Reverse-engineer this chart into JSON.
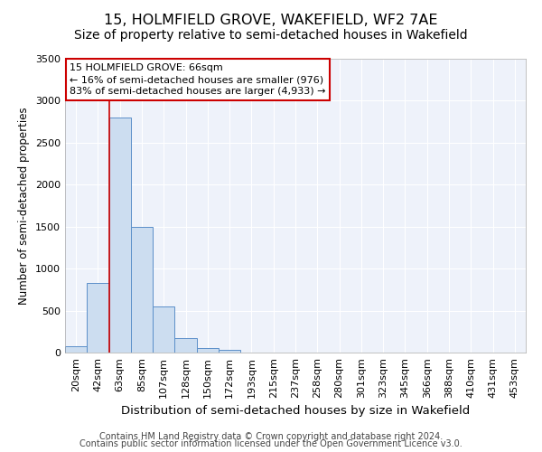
{
  "title": "15, HOLMFIELD GROVE, WAKEFIELD, WF2 7AE",
  "subtitle": "Size of property relative to semi-detached houses in Wakefield",
  "xlabel": "Distribution of semi-detached houses by size in Wakefield",
  "ylabel": "Number of semi-detached properties",
  "categories": [
    "20sqm",
    "42sqm",
    "63sqm",
    "85sqm",
    "107sqm",
    "128sqm",
    "150sqm",
    "172sqm",
    "193sqm",
    "215sqm",
    "237sqm",
    "258sqm",
    "280sqm",
    "301sqm",
    "323sqm",
    "345sqm",
    "366sqm",
    "388sqm",
    "410sqm",
    "431sqm",
    "453sqm"
  ],
  "values": [
    75,
    825,
    2800,
    1500,
    550,
    175,
    55,
    35,
    0,
    0,
    0,
    0,
    0,
    0,
    0,
    0,
    0,
    0,
    0,
    0,
    0
  ],
  "bar_color": "#ccddf0",
  "bar_edge_color": "#5b8fc9",
  "vline_color": "#cc0000",
  "vline_pos": 1.5,
  "ylim": [
    0,
    3500
  ],
  "yticks": [
    0,
    500,
    1000,
    1500,
    2000,
    2500,
    3000,
    3500
  ],
  "annotation_text": "15 HOLMFIELD GROVE: 66sqm\n← 16% of semi-detached houses are smaller (976)\n83% of semi-detached houses are larger (4,933) →",
  "annotation_box_color": "#ffffff",
  "annotation_box_edge": "#cc0000",
  "footer_line1": "Contains HM Land Registry data © Crown copyright and database right 2024.",
  "footer_line2": "Contains public sector information licensed under the Open Government Licence v3.0.",
  "bg_color": "#eef2fa",
  "title_fontsize": 11.5,
  "subtitle_fontsize": 10,
  "tick_fontsize": 8,
  "ylabel_fontsize": 8.5,
  "xlabel_fontsize": 9.5,
  "annot_fontsize": 8,
  "footer_fontsize": 7
}
